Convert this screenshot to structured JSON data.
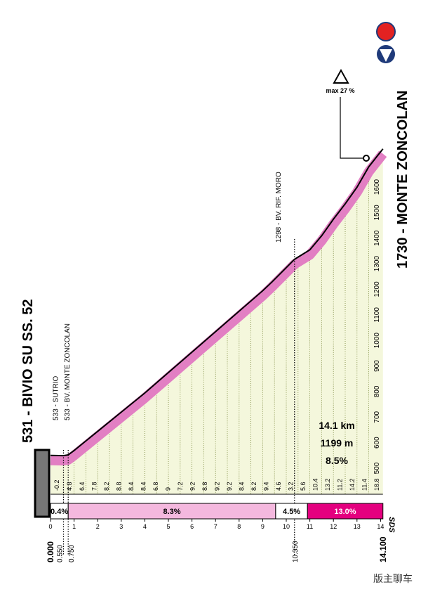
{
  "chart_data": {
    "type": "climb-profile",
    "start_label": "531 - BIVIO SU SS. 52",
    "finish_label": "1730 - MONTE ZONCOLAN",
    "waypoints": [
      {
        "km": 0.55,
        "label": "533 - SUTRIO"
      },
      {
        "km": 0.75,
        "label": "533 - BV. MONTE ZONCOLAN"
      },
      {
        "km": 10.35,
        "label": "1298 - BV. RIF. MORO"
      }
    ],
    "max_gradient_label": "max 27 %",
    "x": [
      0,
      0.55,
      0.75,
      1,
      2,
      3,
      4,
      5,
      6,
      7,
      8,
      9,
      9.4,
      10.35,
      11,
      11.5,
      12,
      12.5,
      13,
      13.5,
      14.1
    ],
    "values": [
      531,
      530,
      533,
      550,
      625,
      700,
      775,
      855,
      935,
      1015,
      1095,
      1175,
      1210,
      1298,
      1335,
      1390,
      1455,
      1515,
      1580,
      1660,
      1730
    ],
    "color": "#e27fc3",
    "fill": "#f4f7dc",
    "gradients": [
      -0.2,
      4.8,
      6.4,
      7.8,
      8.2,
      8.8,
      8.4,
      8.4,
      6.8,
      9.0,
      7.2,
      9.2,
      8.8,
      9.2,
      9.2,
      8.4,
      8.2,
      9.4,
      4.6,
      3.2,
      5.6,
      10.4,
      13.2,
      11.2,
      14.2,
      11.4,
      18.8
    ],
    "summary": [
      "14.1 km",
      "1199 m",
      "8.5%"
    ],
    "sectors": [
      {
        "start": 0,
        "end": 0.75,
        "label": "0.4%",
        "color": "#ffffff"
      },
      {
        "start": 0.75,
        "end": 9.55,
        "label": "8.3%",
        "color": "#f4b8de"
      },
      {
        "start": 9.55,
        "end": 10.9,
        "label": "4.5%",
        "color": "#ffffff"
      },
      {
        "start": 10.9,
        "end": 14.1,
        "label": "13.0%",
        "color": "#e4007f"
      }
    ],
    "xlim": [
      0,
      14.1
    ],
    "xticks": [
      0,
      1,
      2,
      3,
      4,
      5,
      6,
      7,
      8,
      9,
      10,
      11,
      12,
      13,
      14
    ],
    "distance_marks": [
      {
        "value": 0,
        "label": "0.000"
      },
      {
        "value": 0.55,
        "label": "0.550"
      },
      {
        "value": 0.75,
        "label": "0.750"
      },
      {
        "value": 10.35,
        "label": "10.350"
      },
      {
        "value": 14.1,
        "label": "14.100"
      }
    ],
    "ylim": [
      470,
      1800
    ],
    "yticks": [
      500,
      600,
      700,
      800,
      900,
      1000,
      1100,
      1200,
      1300,
      1400,
      1500,
      1600
    ],
    "logo": "SDS",
    "watermark": "版主聊车"
  }
}
